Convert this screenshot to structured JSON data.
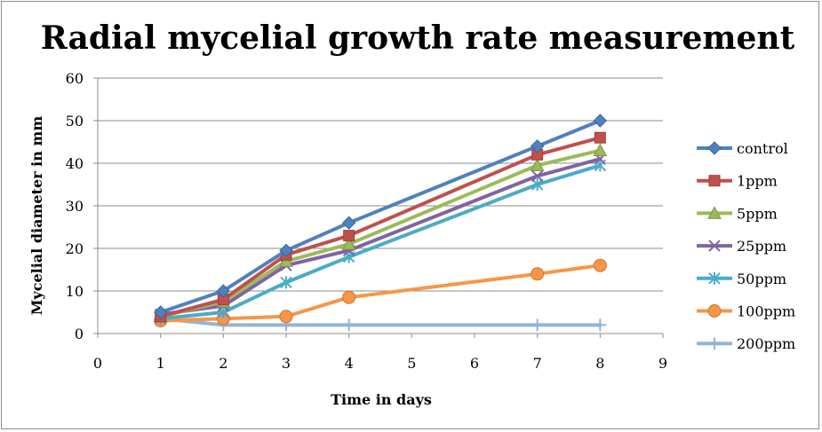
{
  "chart_data": {
    "type": "line",
    "title": "Radial mycelial growth rate measurement",
    "xlabel": "Time in days",
    "ylabel": "Mycelial diameter in mm",
    "xlim": [
      0,
      9
    ],
    "ylim": [
      0,
      60
    ],
    "xticks": [
      0,
      1,
      2,
      3,
      4,
      5,
      6,
      7,
      8,
      9
    ],
    "yticks": [
      0,
      10,
      20,
      30,
      40,
      50,
      60
    ],
    "grid": "horizontal",
    "legend_position": "right",
    "x": [
      1,
      2,
      3,
      4,
      7,
      8
    ],
    "series": [
      {
        "name": "control",
        "color": "#4f81bd",
        "marker": "diamond",
        "values": [
          5,
          10,
          19.5,
          26,
          44,
          50
        ]
      },
      {
        "name": "1ppm",
        "color": "#c0504d",
        "marker": "square",
        "values": [
          4,
          8,
          18.5,
          23,
          42,
          46
        ]
      },
      {
        "name": "5ppm",
        "color": "#9bbb59",
        "marker": "triangle",
        "values": [
          4,
          7.5,
          17,
          21,
          39.5,
          43
        ]
      },
      {
        "name": "25ppm",
        "color": "#8064a2",
        "marker": "x",
        "values": [
          4.5,
          6.5,
          16,
          19.5,
          37,
          41
        ]
      },
      {
        "name": "50ppm",
        "color": "#4bacc6",
        "marker": "star",
        "values": [
          3.5,
          5,
          12,
          18,
          35,
          39.5
        ]
      },
      {
        "name": "100ppm",
        "color": "#f79646",
        "marker": "circle",
        "values": [
          3,
          3.5,
          4,
          8.5,
          14,
          16
        ]
      },
      {
        "name": "200ppm",
        "color": "#95b3d7",
        "marker": "plus",
        "values": [
          3.5,
          2,
          2,
          2,
          2,
          2
        ]
      }
    ]
  }
}
